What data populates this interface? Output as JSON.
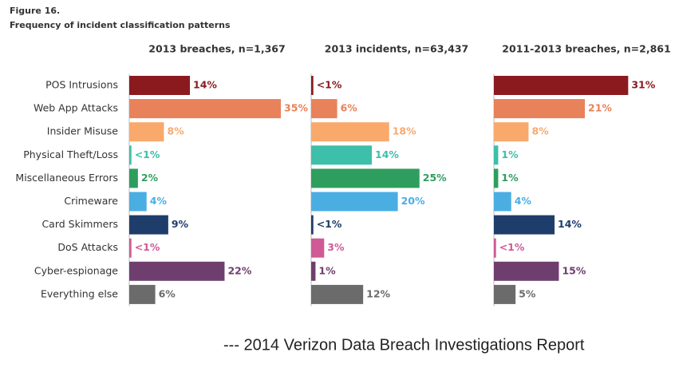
{
  "header": {
    "figure": "Figure 16.",
    "title": "Frequency of incident classification patterns"
  },
  "chart_data": [
    {
      "type": "hbar",
      "title": "2013 breaches, n=1,367",
      "categories": [
        "POS Intrusions",
        "Web App Attacks",
        "Insider Misuse",
        "Physical Theft/Loss",
        "Miscellaneous Errors",
        "Crimeware",
        "Card Skimmers",
        "DoS Attacks",
        "Cyber-espionage",
        "Everything else"
      ],
      "colors": [
        "#8b1a1f",
        "#e8825a",
        "#f9a96b",
        "#3dbfa9",
        "#2e9e5e",
        "#4aaee3",
        "#1f3d6b",
        "#cf5a95",
        "#6e3f6e",
        "#6b6b6b"
      ],
      "values": [
        14,
        35,
        8,
        0.5,
        2,
        4,
        9,
        0.5,
        22,
        6
      ],
      "value_labels": [
        "14%",
        "35%",
        "8%",
        "<1%",
        "2%",
        "4%",
        "9%",
        "<1%",
        "22%",
        "6%"
      ]
    },
    {
      "type": "hbar",
      "title": "2013 incidents, n=63,437",
      "values": [
        0.5,
        6,
        18,
        14,
        25,
        20,
        0.5,
        3,
        1,
        12
      ],
      "value_labels": [
        "<1%",
        "6%",
        "18%",
        "14%",
        "25%",
        "20%",
        "<1%",
        "3%",
        "1%",
        "12%"
      ]
    },
    {
      "type": "hbar",
      "title": "2011-2013 breaches, n=2,861",
      "values": [
        31,
        21,
        8,
        1,
        1,
        4,
        14,
        0.5,
        15,
        5
      ],
      "value_labels": [
        "31%",
        "21%",
        "8%",
        "1%",
        "1%",
        "4%",
        "14%",
        "<1%",
        "15%",
        "5%"
      ]
    }
  ],
  "footer": "--- 2014 Verizon Data Breach Investigations Report"
}
